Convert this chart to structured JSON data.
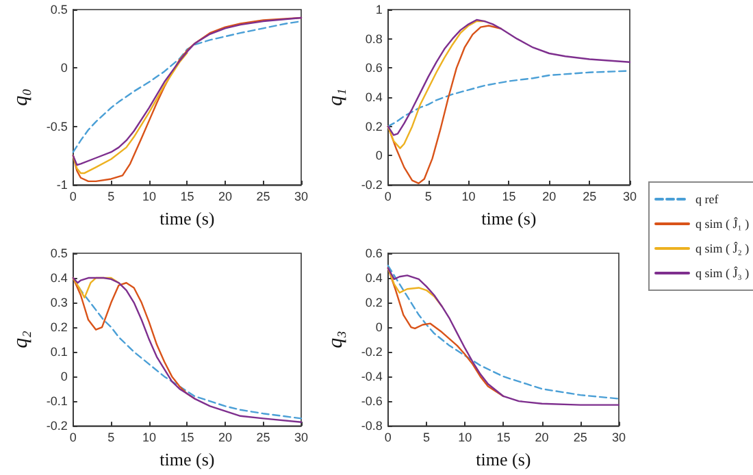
{
  "chart_data": [
    {
      "type": "line",
      "ylabel": "q₀",
      "xlabel": "time (s)",
      "xlim": [
        0,
        30
      ],
      "xticks": [
        0,
        5,
        10,
        15,
        20,
        25,
        30
      ],
      "ylim": [
        -1,
        0.5
      ],
      "yticks": [
        -1,
        -0.5,
        0,
        0.5
      ],
      "grid": false,
      "legend": false,
      "marker": "none",
      "series": [
        {
          "color": "#4a9fd6",
          "line_style": "dashed",
          "x": [
            0,
            1,
            2,
            3,
            4,
            5,
            6,
            8,
            10,
            12,
            14,
            15,
            16,
            18,
            20,
            22,
            25,
            28,
            30
          ],
          "values": [
            -0.72,
            -0.62,
            -0.53,
            -0.46,
            -0.4,
            -0.34,
            -0.29,
            -0.2,
            -0.12,
            -0.03,
            0.08,
            0.16,
            0.2,
            0.24,
            0.27,
            0.3,
            0.34,
            0.38,
            0.4
          ]
        },
        {
          "color": "#d95319",
          "line_style": "solid",
          "x": [
            0,
            0.5,
            1,
            2,
            3,
            5,
            6.5,
            7.5,
            9,
            10,
            11,
            12,
            13,
            14,
            15,
            16,
            18,
            20,
            22,
            25,
            30
          ],
          "values": [
            -0.75,
            -0.88,
            -0.94,
            -0.97,
            -0.97,
            -0.95,
            -0.92,
            -0.82,
            -0.6,
            -0.45,
            -0.3,
            -0.16,
            -0.04,
            0.07,
            0.15,
            0.21,
            0.3,
            0.35,
            0.38,
            0.41,
            0.43
          ]
        },
        {
          "color": "#edb120",
          "line_style": "solid",
          "x": [
            0,
            0.5,
            1,
            1.5,
            3,
            5,
            7,
            8,
            10,
            12,
            14,
            15
          ],
          "values": [
            -0.75,
            -0.86,
            -0.9,
            -0.9,
            -0.85,
            -0.78,
            -0.68,
            -0.59,
            -0.38,
            -0.15,
            0.05,
            0.13
          ]
        },
        {
          "color": "#7e2f8e",
          "line_style": "solid",
          "x": [
            0,
            0.5,
            1,
            3,
            5,
            6,
            7,
            8,
            10,
            12,
            14,
            15,
            16,
            18,
            20,
            22,
            25,
            30
          ],
          "values": [
            -0.75,
            -0.83,
            -0.82,
            -0.77,
            -0.72,
            -0.68,
            -0.62,
            -0.54,
            -0.34,
            -0.12,
            0.06,
            0.14,
            0.21,
            0.29,
            0.34,
            0.37,
            0.4,
            0.43
          ]
        }
      ]
    },
    {
      "type": "line",
      "ylabel": "q₁",
      "xlabel": "time (s)",
      "xlim": [
        0,
        30
      ],
      "xticks": [
        0,
        5,
        10,
        15,
        20,
        25,
        30
      ],
      "ylim": [
        -0.2,
        1
      ],
      "yticks": [
        -0.2,
        0,
        0.2,
        0.4,
        0.6,
        0.8,
        1
      ],
      "grid": false,
      "legend": "right",
      "marker": "none",
      "series": [
        {
          "name": "q ref",
          "color": "#4a9fd6",
          "line_style": "dashed",
          "x": [
            0,
            1,
            2,
            3,
            4,
            5,
            6,
            8,
            10,
            12,
            15,
            18,
            20,
            25,
            30
          ],
          "values": [
            0.2,
            0.23,
            0.27,
            0.3,
            0.33,
            0.35,
            0.38,
            0.42,
            0.45,
            0.48,
            0.51,
            0.53,
            0.55,
            0.57,
            0.58
          ]
        },
        {
          "name": "q sim ( Ĵ₁ )",
          "color": "#d95319",
          "line_style": "solid",
          "x": [
            0,
            1,
            2,
            3,
            3.8,
            4.5,
            5.5,
            6.5,
            7.5,
            8.5,
            9.5,
            10.5,
            11.5,
            12.5,
            14
          ],
          "values": [
            0.2,
            0.05,
            -0.08,
            -0.17,
            -0.19,
            -0.16,
            -0.02,
            0.18,
            0.4,
            0.6,
            0.74,
            0.83,
            0.88,
            0.89,
            0.87
          ]
        },
        {
          "name": "q sim ( Ĵ₂ )",
          "color": "#edb120",
          "line_style": "solid",
          "x": [
            0,
            0.7,
            1.5,
            2,
            3,
            4,
            5,
            6,
            7,
            8,
            9,
            10,
            11,
            12
          ],
          "values": [
            0.2,
            0.1,
            0.05,
            0.08,
            0.2,
            0.35,
            0.46,
            0.57,
            0.67,
            0.76,
            0.84,
            0.89,
            0.92,
            0.92
          ]
        },
        {
          "name": "q sim ( Ĵ₃ )",
          "color": "#7e2f8e",
          "line_style": "solid",
          "x": [
            0,
            0.7,
            1.2,
            2,
            3,
            4,
            5,
            6,
            7,
            8,
            9,
            10,
            11,
            12,
            13,
            14,
            16,
            18,
            20,
            22,
            25,
            30
          ],
          "values": [
            0.2,
            0.14,
            0.15,
            0.22,
            0.32,
            0.43,
            0.54,
            0.64,
            0.73,
            0.8,
            0.86,
            0.9,
            0.93,
            0.92,
            0.9,
            0.87,
            0.8,
            0.74,
            0.7,
            0.68,
            0.66,
            0.64
          ]
        }
      ]
    },
    {
      "type": "line",
      "ylabel": "q₂",
      "xlabel": "time (s)",
      "xlim": [
        0,
        30
      ],
      "xticks": [
        0,
        5,
        10,
        15,
        20,
        25,
        30
      ],
      "ylim": [
        -0.2,
        0.5
      ],
      "yticks": [
        -0.2,
        -0.1,
        0,
        0.1,
        0.2,
        0.3,
        0.4,
        0.5
      ],
      "grid": false,
      "legend": false,
      "marker": "none",
      "series": [
        {
          "color": "#4a9fd6",
          "line_style": "dashed",
          "x": [
            0,
            1,
            2,
            3,
            4,
            5,
            6,
            8,
            10,
            12,
            14,
            16,
            18,
            20,
            22,
            25,
            30
          ],
          "values": [
            0.4,
            0.35,
            0.31,
            0.27,
            0.23,
            0.2,
            0.16,
            0.1,
            0.05,
            0,
            -0.04,
            -0.08,
            -0.1,
            -0.12,
            -0.135,
            -0.15,
            -0.17
          ]
        },
        {
          "color": "#d95319",
          "line_style": "solid",
          "x": [
            0,
            1,
            2,
            3,
            3.8,
            5,
            6,
            7,
            8,
            9,
            10,
            11,
            12,
            13,
            14,
            15,
            16
          ],
          "values": [
            0.4,
            0.33,
            0.23,
            0.19,
            0.2,
            0.3,
            0.37,
            0.38,
            0.36,
            0.3,
            0.22,
            0.13,
            0.06,
            0,
            -0.04,
            -0.07,
            -0.09
          ]
        },
        {
          "color": "#edb120",
          "line_style": "solid",
          "x": [
            0,
            0.8,
            1.5,
            2.3,
            3,
            4,
            5,
            6
          ],
          "values": [
            0.4,
            0.36,
            0.32,
            0.38,
            0.4,
            0.4,
            0.4,
            0.38
          ]
        },
        {
          "color": "#7e2f8e",
          "line_style": "solid",
          "x": [
            0,
            0.6,
            1,
            2,
            4,
            5,
            6,
            7,
            8,
            9,
            10,
            11,
            12,
            13,
            14,
            15,
            16,
            18,
            20,
            22,
            25,
            30
          ],
          "values": [
            0.4,
            0.38,
            0.39,
            0.4,
            0.4,
            0.395,
            0.38,
            0.35,
            0.3,
            0.23,
            0.15,
            0.08,
            0.03,
            -0.02,
            -0.05,
            -0.07,
            -0.09,
            -0.12,
            -0.14,
            -0.16,
            -0.17,
            -0.185
          ]
        }
      ]
    },
    {
      "type": "line",
      "ylabel": "q₃",
      "xlabel": "time (s)",
      "xlim": [
        0,
        30
      ],
      "xticks": [
        0,
        5,
        10,
        15,
        20,
        25,
        30
      ],
      "ylim": [
        -0.8,
        0.6
      ],
      "yticks": [
        -0.8,
        -0.6,
        -0.4,
        -0.2,
        0,
        0.2,
        0.4,
        0.6
      ],
      "grid": false,
      "legend": false,
      "marker": "none",
      "series": [
        {
          "color": "#4a9fd6",
          "line_style": "dashed",
          "x": [
            0,
            1,
            2,
            3,
            4,
            5,
            6,
            8,
            10,
            12,
            15,
            18,
            20,
            25,
            30
          ],
          "values": [
            0.5,
            0.4,
            0.3,
            0.2,
            0.1,
            0.02,
            -0.05,
            -0.15,
            -0.23,
            -0.31,
            -0.4,
            -0.46,
            -0.5,
            -0.55,
            -0.58
          ]
        },
        {
          "color": "#d95319",
          "line_style": "solid",
          "x": [
            0,
            1,
            2,
            3,
            3.5,
            4.5,
            5.5,
            7,
            9,
            10,
            11,
            12,
            13,
            15
          ],
          "values": [
            0.48,
            0.3,
            0.1,
            0,
            -0.01,
            0.02,
            0.03,
            -0.04,
            -0.15,
            -0.22,
            -0.3,
            -0.4,
            -0.48,
            -0.56
          ]
        },
        {
          "color": "#edb120",
          "line_style": "solid",
          "x": [
            0,
            0.8,
            1.5,
            2.5,
            4,
            5,
            6,
            7
          ],
          "values": [
            0.48,
            0.35,
            0.28,
            0.31,
            0.32,
            0.3,
            0.25,
            0.17
          ]
        },
        {
          "color": "#7e2f8e",
          "line_style": "solid",
          "x": [
            0,
            0.8,
            1.5,
            2.5,
            4,
            5,
            6,
            7,
            8,
            9,
            10,
            11,
            12,
            13,
            15,
            17,
            20,
            25,
            30
          ],
          "values": [
            0.48,
            0.39,
            0.41,
            0.42,
            0.39,
            0.33,
            0.26,
            0.17,
            0.07,
            -0.05,
            -0.17,
            -0.28,
            -0.38,
            -0.46,
            -0.56,
            -0.6,
            -0.62,
            -0.63,
            -0.63
          ]
        }
      ]
    }
  ]
}
